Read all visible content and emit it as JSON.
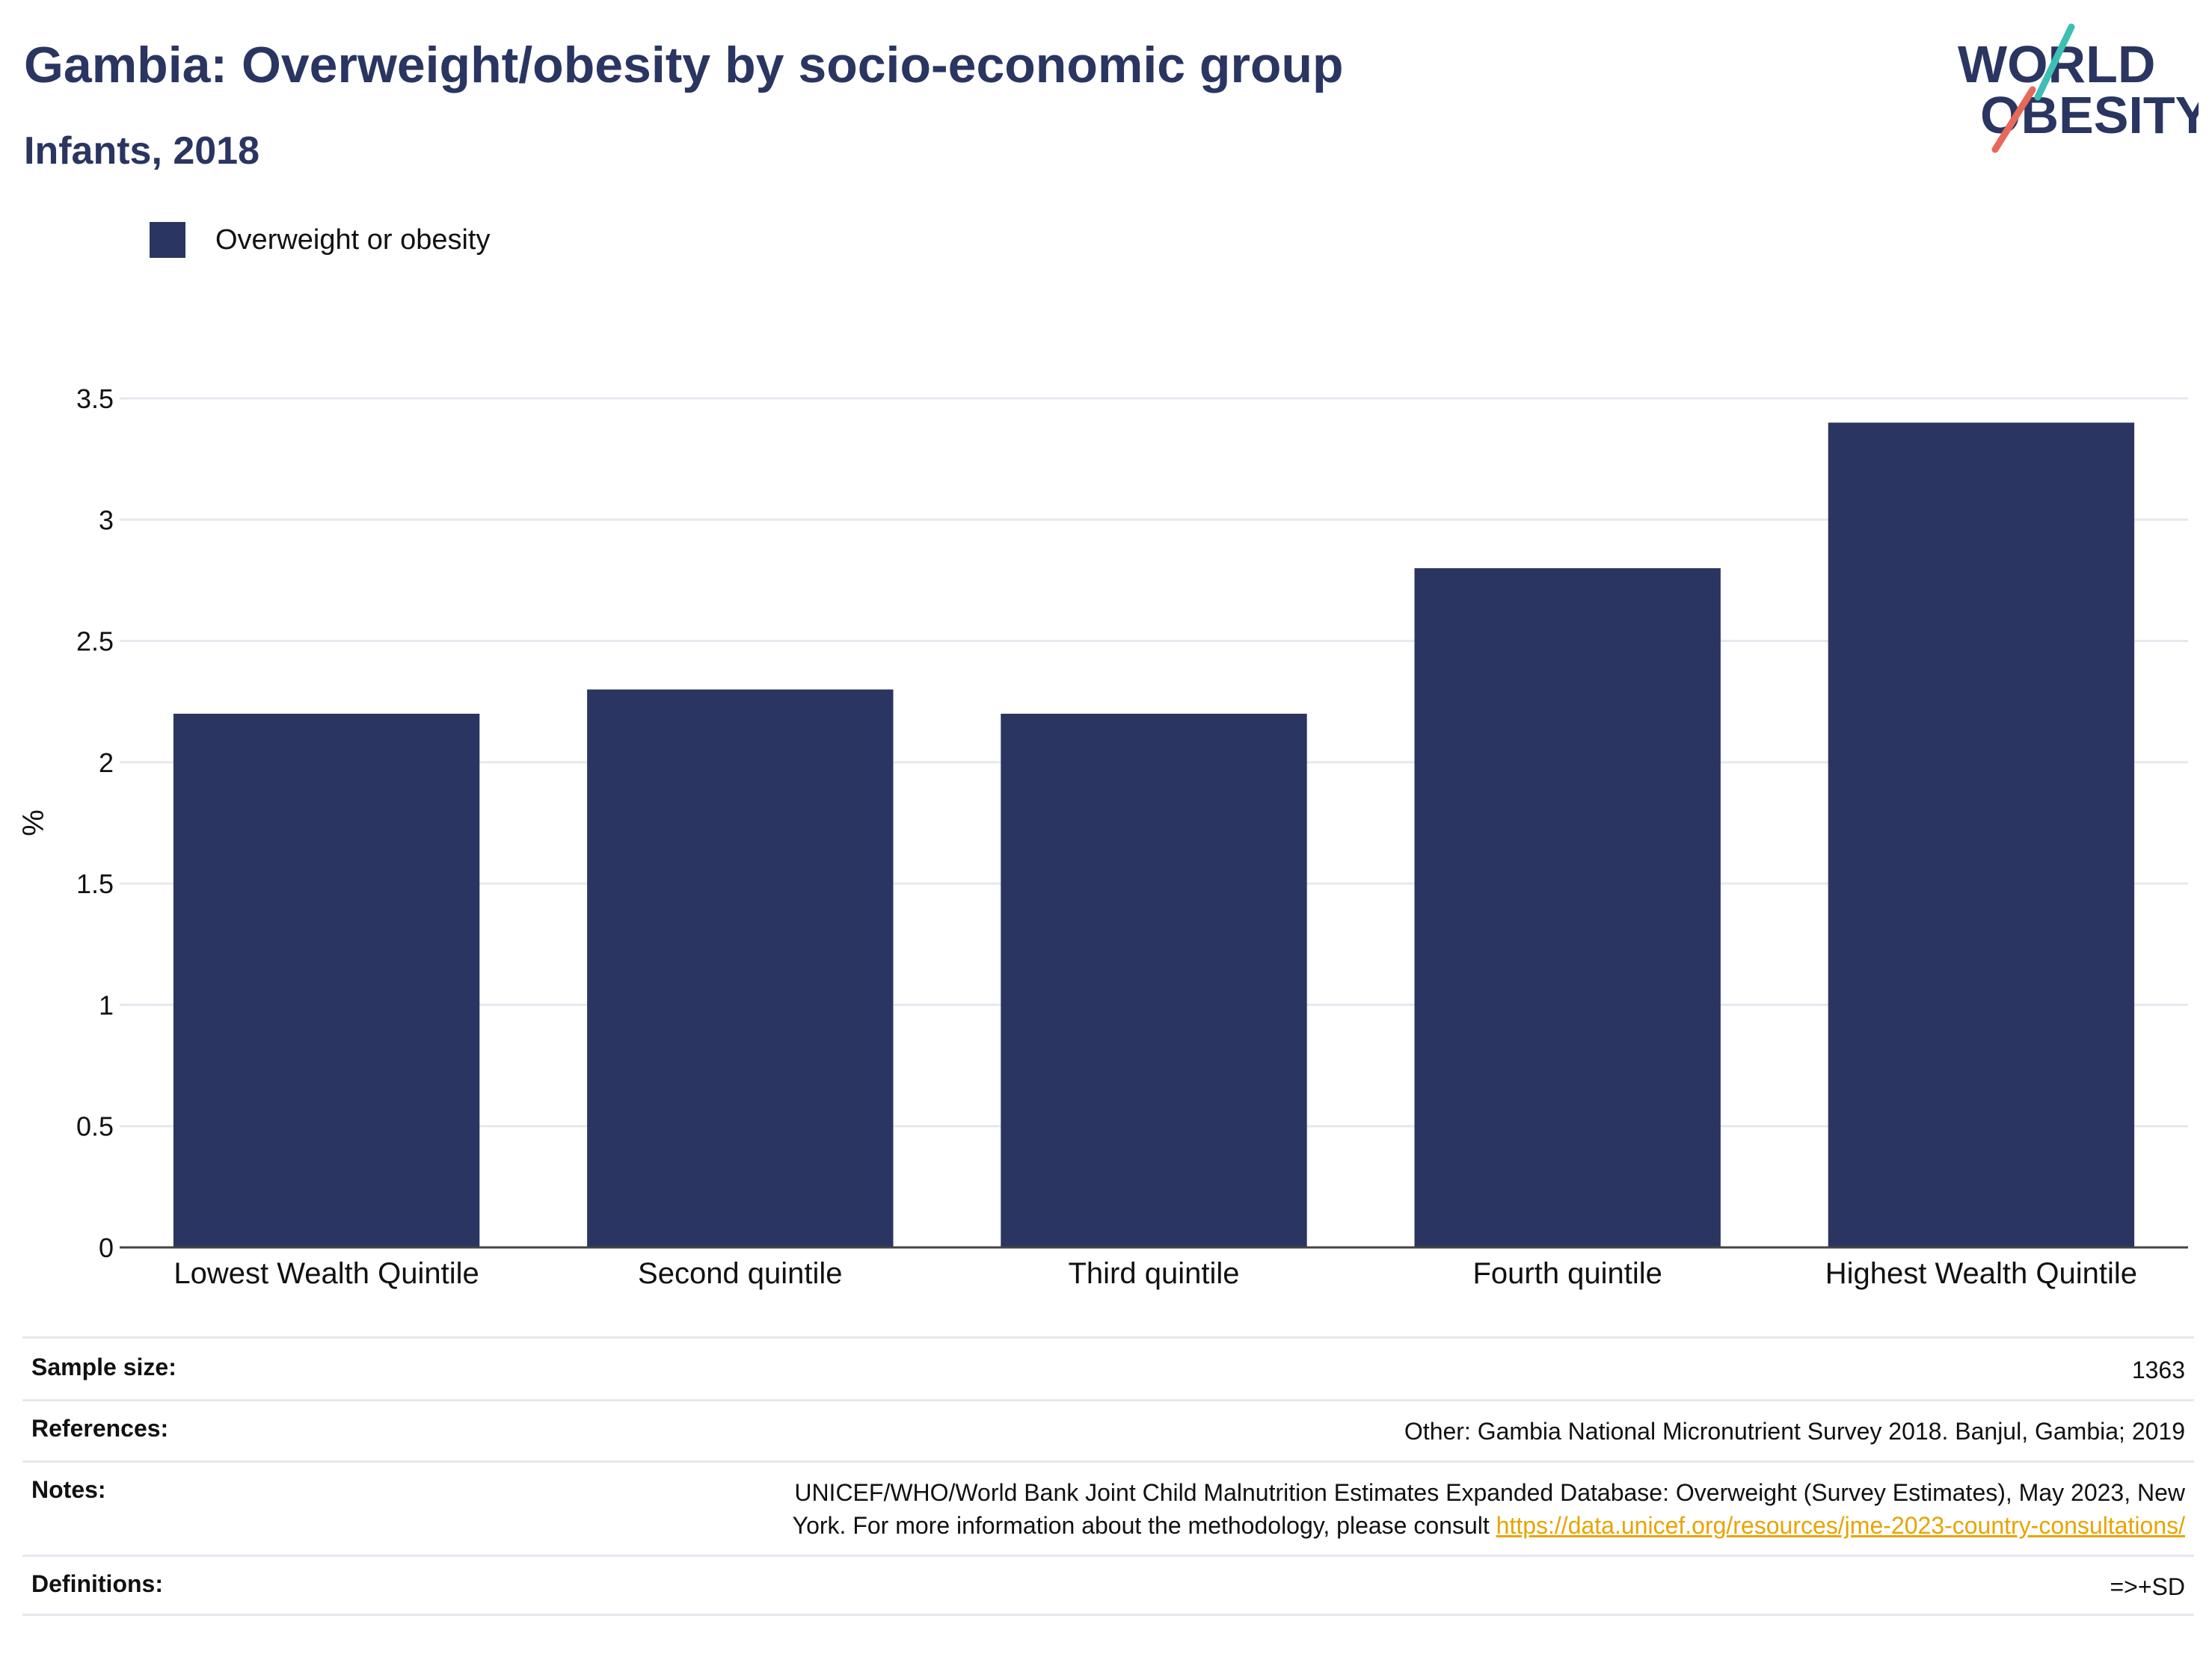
{
  "header": {
    "title": "Gambia: Overweight/obesity by socio-economic group",
    "subtitle": "Infants, 2018"
  },
  "logo": {
    "line1": "WORLD",
    "line2": "OBESITY",
    "colors": {
      "text": "#2a3561",
      "teal": "#3dbfb4",
      "coral": "#e8685a"
    }
  },
  "legend": {
    "label": "Overweight or obesity"
  },
  "chart_data": {
    "type": "bar",
    "categories": [
      "Lowest Wealth Quintile",
      "Second quintile",
      "Third quintile",
      "Fourth quintile",
      "Highest Wealth Quintile"
    ],
    "series": [
      {
        "name": "Overweight or obesity",
        "values": [
          2.2,
          2.3,
          2.2,
          2.8,
          3.4
        ],
        "color": "#2a3561"
      }
    ],
    "ylabel": "%",
    "ylim": [
      0,
      3.5
    ],
    "yticks": [
      0,
      0.5,
      1,
      1.5,
      2,
      2.5,
      3,
      3.5
    ],
    "ytick_labels": [
      "0",
      "0.5",
      "1",
      "1.5",
      "2",
      "2.5",
      "3",
      "3.5"
    ],
    "grid": true,
    "legend_position": "top-left"
  },
  "info": {
    "sample_size": {
      "label": "Sample size:",
      "value": "1363"
    },
    "references": {
      "label": "References:",
      "value": "Other: Gambia National Micronutrient Survey 2018. Banjul, Gambia; 2019"
    },
    "notes": {
      "label": "Notes:",
      "line1": "UNICEF/WHO/World Bank Joint Child Malnutrition Estimates Expanded Database: Overweight (Survey Estimates), May 2023, New",
      "line2": "York. For more information about the methodology, please consult",
      "link": "https://data.unicef.org/resources/jme-2023-country-consultations/"
    },
    "definitions": {
      "label": "Definitions:",
      "value": "=>+SD"
    }
  }
}
